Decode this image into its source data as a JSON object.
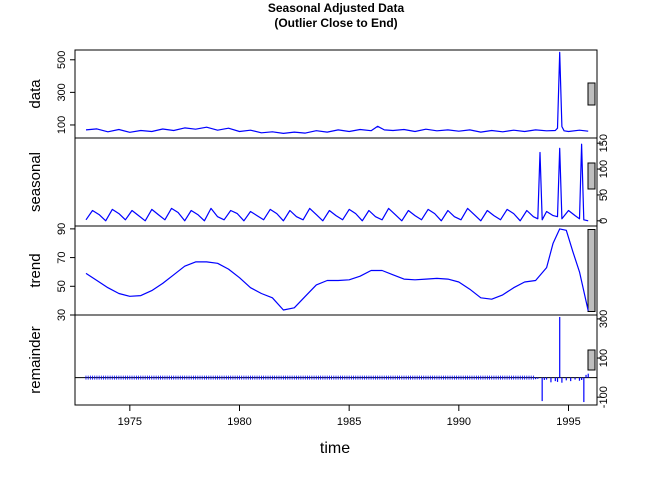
{
  "chart_data": {
    "type": "line",
    "title": "Seasonal Adjusted Data",
    "subtitle": "(Outlier Close to End)",
    "xlabel": "time",
    "xlim": [
      1972.5,
      1996.3
    ],
    "x_ticks": [
      "1975",
      "1980",
      "1985",
      "1990",
      "1995"
    ],
    "line_color": "#0000ff",
    "panels": [
      {
        "name": "data",
        "ylim": [
          20,
          560
        ],
        "ticks": [
          "100",
          "300",
          "500"
        ],
        "tick_side": "left",
        "bar_height": 22,
        "series": {
          "x": [
            1973.0,
            1973.5,
            1974.0,
            1974.5,
            1975.0,
            1975.5,
            1976.0,
            1976.5,
            1977.0,
            1977.5,
            1978.0,
            1978.5,
            1979.0,
            1979.5,
            1980.0,
            1980.5,
            1981.0,
            1981.5,
            1982.0,
            1982.5,
            1983.0,
            1983.5,
            1984.0,
            1984.5,
            1985.0,
            1985.5,
            1986.0,
            1986.3,
            1986.6,
            1987.0,
            1987.5,
            1988.0,
            1988.5,
            1989.0,
            1989.5,
            1990.0,
            1990.5,
            1991.0,
            1991.5,
            1992.0,
            1992.5,
            1993.0,
            1993.5,
            1994.0,
            1994.4,
            1994.5,
            1994.6,
            1994.7,
            1994.8,
            1995.0,
            1995.5,
            1995.9
          ],
          "values": [
            70,
            76,
            58,
            72,
            55,
            66,
            60,
            75,
            66,
            82,
            74,
            86,
            68,
            80,
            60,
            68,
            52,
            58,
            48,
            56,
            50,
            65,
            56,
            70,
            60,
            72,
            65,
            92,
            70,
            66,
            72,
            60,
            74,
            64,
            70,
            62,
            70,
            56,
            66,
            58,
            68,
            60,
            70,
            64,
            66,
            80,
            545,
            90,
            64,
            60,
            68,
            62
          ]
        }
      },
      {
        "name": "seasonal",
        "ylim": [
          -10,
          160
        ],
        "ticks": [
          "0",
          "50",
          "100",
          "150"
        ],
        "tick_side": "right",
        "bar_height": 26,
        "series": {
          "x": [
            1973.0,
            1973.3,
            1973.6,
            1973.9,
            1974.2,
            1974.5,
            1974.8,
            1975.1,
            1975.4,
            1975.7,
            1976.0,
            1976.3,
            1976.6,
            1976.9,
            1977.2,
            1977.5,
            1977.8,
            1978.1,
            1978.4,
            1978.7,
            1979.0,
            1979.3,
            1979.6,
            1979.9,
            1980.2,
            1980.5,
            1980.8,
            1981.1,
            1981.4,
            1981.7,
            1982.0,
            1982.3,
            1982.6,
            1982.9,
            1983.2,
            1983.5,
            1983.8,
            1984.1,
            1984.4,
            1984.7,
            1985.0,
            1985.3,
            1985.6,
            1985.9,
            1986.2,
            1986.5,
            1986.8,
            1987.1,
            1987.4,
            1987.7,
            1988.0,
            1988.3,
            1988.6,
            1988.9,
            1989.2,
            1989.5,
            1989.8,
            1990.1,
            1990.4,
            1990.7,
            1991.0,
            1991.3,
            1991.6,
            1991.9,
            1992.2,
            1992.5,
            1992.8,
            1993.1,
            1993.4,
            1993.6,
            1993.7,
            1993.8,
            1994.0,
            1994.3,
            1994.5,
            1994.6,
            1994.7,
            1995.0,
            1995.3,
            1995.5,
            1995.6,
            1995.7,
            1995.9
          ],
          "values": [
            2,
            20,
            12,
            0,
            22,
            14,
            2,
            20,
            10,
            0,
            22,
            12,
            2,
            24,
            16,
            0,
            20,
            12,
            0,
            24,
            8,
            2,
            20,
            14,
            0,
            18,
            10,
            2,
            22,
            14,
            0,
            20,
            8,
            2,
            24,
            12,
            0,
            20,
            10,
            2,
            22,
            14,
            0,
            20,
            8,
            2,
            24,
            12,
            0,
            20,
            10,
            2,
            22,
            14,
            0,
            20,
            8,
            2,
            24,
            12,
            0,
            20,
            10,
            2,
            22,
            14,
            0,
            20,
            8,
            4,
            132,
            2,
            18,
            10,
            8,
            140,
            4,
            20,
            10,
            4,
            148,
            2,
            0
          ]
        }
      },
      {
        "name": "trend",
        "ylim": [
          30,
          92
        ],
        "ticks": [
          "30",
          "50",
          "70",
          "90"
        ],
        "tick_side": "left",
        "bar_height": 82,
        "series": {
          "x": [
            1973.0,
            1973.5,
            1974.0,
            1974.5,
            1975.0,
            1975.5,
            1976.0,
            1976.5,
            1977.0,
            1977.5,
            1978.0,
            1978.5,
            1979.0,
            1979.5,
            1980.0,
            1980.5,
            1981.0,
            1981.5,
            1982.0,
            1982.5,
            1983.0,
            1983.5,
            1984.0,
            1984.5,
            1985.0,
            1985.5,
            1986.0,
            1986.5,
            1987.0,
            1987.5,
            1988.0,
            1988.5,
            1989.0,
            1989.5,
            1990.0,
            1990.5,
            1991.0,
            1991.5,
            1992.0,
            1992.5,
            1993.0,
            1993.5,
            1994.0,
            1994.3,
            1994.6,
            1994.9,
            1995.2,
            1995.5,
            1995.9
          ],
          "values": [
            59,
            54,
            49,
            45,
            43,
            43.5,
            47,
            52,
            58,
            64,
            67,
            67,
            66,
            62,
            56,
            49,
            45,
            42,
            33.5,
            35,
            43,
            51,
            54,
            54,
            54.5,
            57,
            61,
            61,
            58,
            55,
            54.5,
            55,
            55.5,
            55,
            53,
            48,
            42,
            41,
            44,
            49,
            53,
            54,
            63,
            80,
            90,
            89,
            74,
            60,
            33
          ]
        }
      },
      {
        "name": "remainder",
        "ylim": [
          -140,
          320
        ],
        "ticks": [
          "-100",
          "100",
          "300"
        ],
        "tick_side": "right",
        "bar_height": 20,
        "series": {
          "x": [
            1973.0,
            1974.0,
            1975.0,
            1976.0,
            1977.0,
            1978.0,
            1979.0,
            1980.0,
            1981.0,
            1982.0,
            1983.0,
            1984.0,
            1985.0,
            1986.0,
            1987.0,
            1988.0,
            1989.0,
            1990.0,
            1991.0,
            1992.0,
            1993.0,
            1993.5,
            1993.6,
            1993.8,
            1993.9,
            1994.0,
            1994.2,
            1994.4,
            1994.5,
            1994.6,
            1994.7,
            1994.9,
            1995.1,
            1995.3,
            1995.5,
            1995.6,
            1995.7,
            1995.8,
            1995.9
          ],
          "values": [
            0,
            2,
            -2,
            3,
            -3,
            2,
            0,
            -2,
            2,
            -3,
            3,
            -2,
            1,
            4,
            -3,
            2,
            -2,
            3,
            -2,
            2,
            -3,
            -8,
            -6,
            -120,
            -12,
            -10,
            -24,
            -18,
            -22,
            310,
            -26,
            -14,
            -18,
            -10,
            -16,
            -12,
            -125,
            14,
            20
          ]
        }
      }
    ]
  }
}
